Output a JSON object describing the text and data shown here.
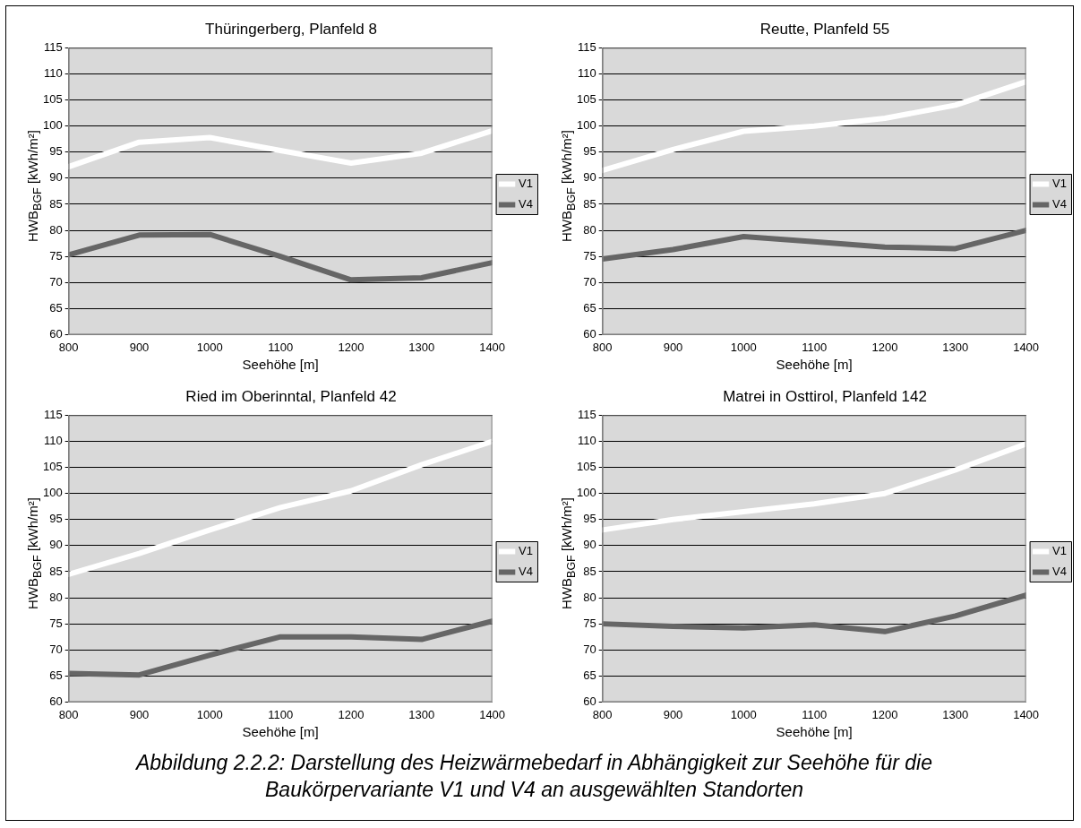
{
  "chart_data": [
    {
      "type": "line",
      "title": "Thüringerberg, Planfeld 8",
      "xlabel": "Seehöhe [m]",
      "ylabel": "HWB$_{BGF}$ [kWh/m²]",
      "x": [
        800,
        900,
        1000,
        1100,
        1200,
        1300,
        1400
      ],
      "series": [
        {
          "name": "V1",
          "color": "#ffffff",
          "values": [
            92.2,
            96.9,
            97.8,
            95.3,
            92.9,
            94.8,
            99.1
          ]
        },
        {
          "name": "V4",
          "color": "#666666",
          "values": [
            75.3,
            79.1,
            79.2,
            75,
            70.5,
            70.9,
            73.8
          ]
        }
      ],
      "xlim": [
        800,
        1400
      ],
      "ylim": [
        60,
        115
      ],
      "xticks": [
        800,
        900,
        1000,
        1100,
        1200,
        1300,
        1400
      ],
      "yticks": [
        60,
        65,
        70,
        75,
        80,
        85,
        90,
        95,
        100,
        105,
        110,
        115
      ],
      "grid": "y",
      "legend": "right",
      "marker": "none",
      "line_style": "solid"
    },
    {
      "type": "line",
      "title": "Reutte, Planfeld 55",
      "xlabel": "Seehöhe [m]",
      "ylabel": "HWB$_{BGF}$ [kWh/m²]",
      "x": [
        800,
        900,
        1000,
        1100,
        1200,
        1300,
        1400
      ],
      "series": [
        {
          "name": "V1",
          "color": "#ffffff",
          "values": [
            91.5,
            95.5,
            99,
            100,
            101.5,
            104,
            108.5
          ]
        },
        {
          "name": "V4",
          "color": "#666666",
          "values": [
            74.5,
            76.3,
            78.8,
            77.8,
            76.8,
            76.5,
            80
          ]
        }
      ],
      "xlim": [
        800,
        1400
      ],
      "ylim": [
        60,
        115
      ],
      "xticks": [
        800,
        900,
        1000,
        1100,
        1200,
        1300,
        1400
      ],
      "yticks": [
        60,
        65,
        70,
        75,
        80,
        85,
        90,
        95,
        100,
        105,
        110,
        115
      ],
      "grid": "y",
      "legend": "right",
      "marker": "none",
      "line_style": "solid"
    },
    {
      "type": "line",
      "title": "Ried im Oberinntal, Planfeld 42",
      "xlabel": "Seehöhe [m]",
      "ylabel": "HWB$_{BGF}$ [kWh/m²]",
      "x": [
        800,
        900,
        1000,
        1100,
        1200,
        1300,
        1400
      ],
      "series": [
        {
          "name": "V1",
          "color": "#ffffff",
          "values": [
            84.5,
            88.5,
            93,
            97.3,
            100.5,
            105.5,
            110
          ]
        },
        {
          "name": "V4",
          "color": "#666666",
          "values": [
            65.5,
            65.2,
            69,
            72.5,
            72.5,
            72,
            75.5
          ]
        }
      ],
      "xlim": [
        800,
        1400
      ],
      "ylim": [
        60,
        115
      ],
      "xticks": [
        800,
        900,
        1000,
        1100,
        1200,
        1300,
        1400
      ],
      "yticks": [
        60,
        65,
        70,
        75,
        80,
        85,
        90,
        95,
        100,
        105,
        110,
        115
      ],
      "grid": "y",
      "legend": "right",
      "marker": "none",
      "line_style": "solid"
    },
    {
      "type": "line",
      "title": "Matrei in Osttirol, Planfeld 142",
      "xlabel": "Seehöhe [m]",
      "ylabel": "HWB$_{BGF}$ [kWh/m²]",
      "x": [
        800,
        900,
        1000,
        1100,
        1200,
        1300,
        1400
      ],
      "series": [
        {
          "name": "V1",
          "color": "#ffffff",
          "values": [
            93,
            95,
            96.5,
            98,
            100,
            104.5,
            109.5
          ]
        },
        {
          "name": "V4",
          "color": "#666666",
          "values": [
            75,
            74.5,
            74.2,
            74.8,
            73.5,
            76.5,
            80.5
          ]
        }
      ],
      "xlim": [
        800,
        1400
      ],
      "ylim": [
        60,
        115
      ],
      "xticks": [
        800,
        900,
        1000,
        1100,
        1200,
        1300,
        1400
      ],
      "yticks": [
        60,
        65,
        70,
        75,
        80,
        85,
        90,
        95,
        100,
        105,
        110,
        115
      ],
      "grid": "y",
      "legend": "right",
      "marker": "none",
      "line_style": "solid",
      "annotations": [
        "Abbildung 2.2.2: Darstellung des Heizwärmebedarf in Abhängigkeit zur Seehöhe für die Baukörpervariante V1 und V4 an ausgewählten Standorten"
      ]
    }
  ]
}
